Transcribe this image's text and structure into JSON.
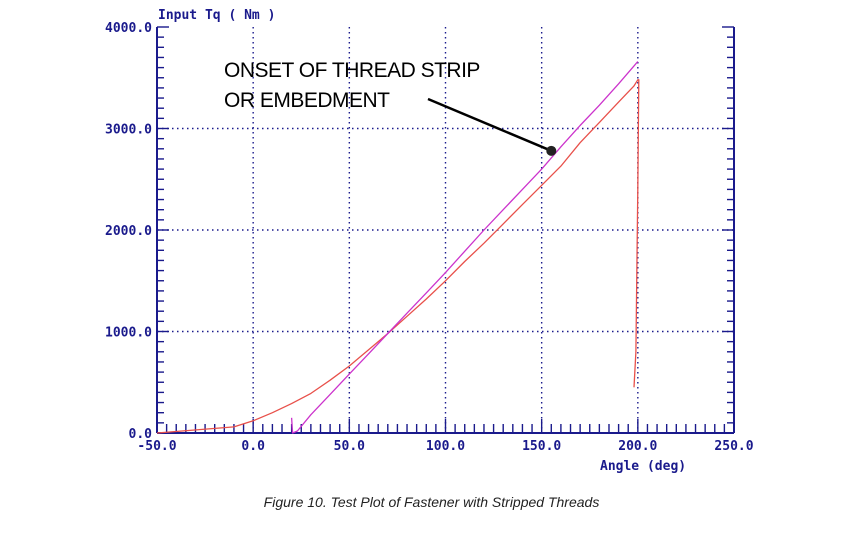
{
  "caption": "Figure 10. Test Plot of Fastener with Stripped Threads",
  "colors": {
    "axis": "#1a1a8c",
    "grid": "#1a1a8c",
    "measured": "#e8504a",
    "fit": "#cc33cc",
    "annotation": "#000000"
  },
  "chart_data": {
    "type": "line",
    "ylabel": "Input Tq ( Nm )",
    "xlabel": "Angle (deg)",
    "xlim": [
      -50,
      250
    ],
    "ylim": [
      0,
      4000
    ],
    "x_ticks": [
      "-50.0",
      "0.0",
      "50.0",
      "100.0",
      "150.0",
      "200.0",
      "250.0"
    ],
    "y_ticks": [
      "0.0",
      "1000.0",
      "2000.0",
      "3000.0",
      "4000.0"
    ],
    "grid": "dotted",
    "annotation": {
      "lines": [
        "ONSET OF THREAD STRIP",
        "OR EMBEDMENT"
      ],
      "point": [
        155,
        2780
      ]
    },
    "series": [
      {
        "x": [
          -50,
          -10,
          0,
          10,
          20,
          30,
          40,
          50,
          60,
          70,
          80,
          90,
          100,
          110,
          120,
          130,
          140,
          150,
          160,
          170,
          180,
          190,
          198,
          200,
          200.5,
          200,
          199,
          198
        ],
        "y": [
          0,
          60,
          120,
          200,
          290,
          390,
          520,
          660,
          820,
          980,
          1150,
          1320,
          1500,
          1690,
          1870,
          2060,
          2250,
          2440,
          2630,
          2860,
          3060,
          3260,
          3420,
          3480,
          3480,
          2400,
          800,
          450
        ]
      },
      {
        "x": [
          20,
          20.5,
          23,
          30,
          40,
          50,
          60,
          70,
          80,
          90,
          100,
          110,
          120,
          130,
          140,
          150,
          160,
          170,
          180,
          190,
          200
        ],
        "y": [
          150,
          0,
          20,
          180,
          380,
          580,
          780,
          980,
          1180,
          1380,
          1580,
          1790,
          2000,
          2200,
          2400,
          2600,
          2820,
          3030,
          3230,
          3440,
          3660
        ]
      }
    ]
  }
}
